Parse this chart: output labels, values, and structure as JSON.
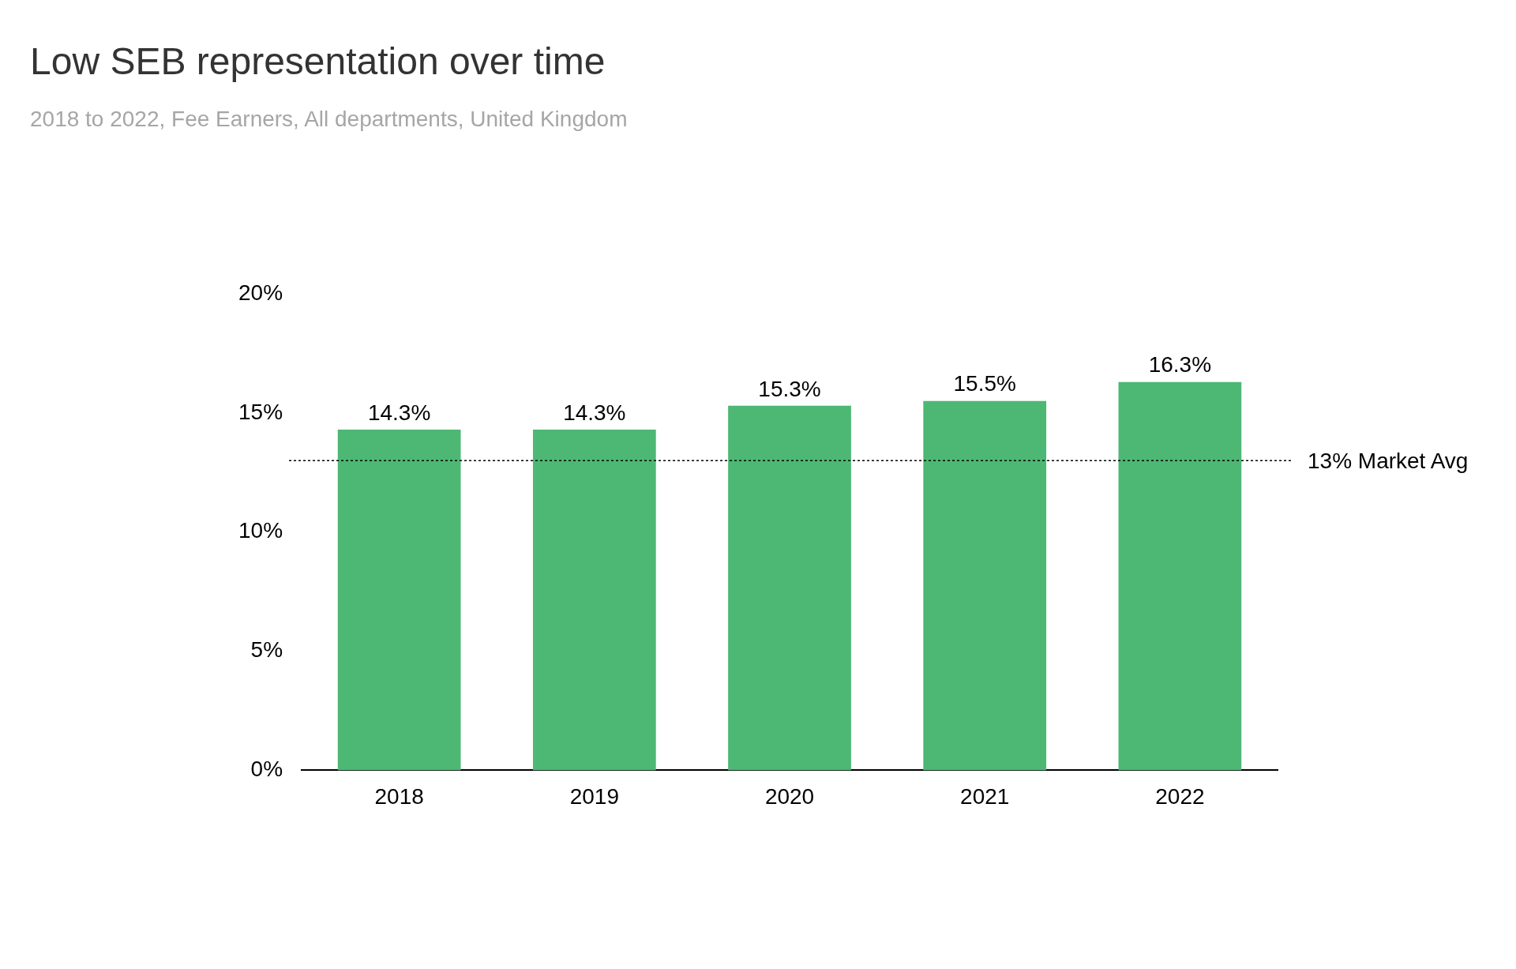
{
  "chart_data": {
    "type": "bar",
    "title": "Low SEB representation over time",
    "subtitle": "2018 to 2022, Fee Earners, All departments, United Kingdom",
    "categories": [
      "2018",
      "2019",
      "2020",
      "2021",
      "2022"
    ],
    "values": [
      14.3,
      14.3,
      15.3,
      15.5,
      16.3
    ],
    "color": "#4cb874",
    "value_labels": [
      "14.3%",
      "14.3%",
      "15.3%",
      "15.5%",
      "16.3%"
    ],
    "ylim": [
      0,
      20
    ],
    "yticks": [
      {
        "value": 0,
        "label": "0%"
      },
      {
        "value": 5,
        "label": "5%"
      },
      {
        "value": 10,
        "label": "10%"
      },
      {
        "value": 15,
        "label": "15%"
      },
      {
        "value": 20,
        "label": "20%"
      }
    ],
    "ref_lines": [
      {
        "axis": "y",
        "value": 13,
        "label": "13% Market Avg",
        "line_style": "dotted",
        "color": "#000000"
      }
    ]
  }
}
